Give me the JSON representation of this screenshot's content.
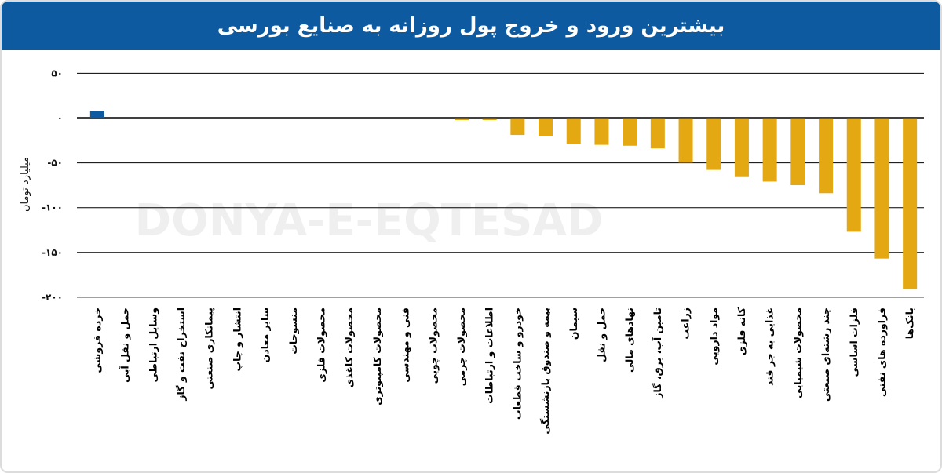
{
  "title": "بیشترین ورود و خروج پول روزانه به صنایع بورسی",
  "watermark": "DONYA-E-EQTESAD",
  "colors": {
    "header": "#0d5aa0",
    "positive": "#0d5aa0",
    "negative": "#e3a812"
  },
  "chart_data": {
    "type": "bar",
    "title": "بیشترین ورود و خروج پول روزانه به صنایع بورسی",
    "ylabel": "میلیارد تومان",
    "xlabel": "",
    "ylim": [
      -200,
      50
    ],
    "yticks": [
      50,
      0,
      -50,
      -100,
      -150,
      -200
    ],
    "ytick_labels": [
      "۵۰",
      "۰",
      "-۵۰",
      "-۱۰۰",
      "-۱۵۰",
      "-۲۰۰"
    ],
    "grid": true,
    "categories": [
      "خرده فروشی",
      "حمل و نقل آبی",
      "وسایل ارتباطی",
      "استخراج نفت و گاز",
      "پیمانکاری صنعتی",
      "انتشار و چاپ",
      "سایر معادن",
      "منسوجات",
      "محصولات فلزی",
      "محصولات کاغذی",
      "محصولات کامپیوتری",
      "فنی و مهندسی",
      "محصولات چوبی",
      "محصولات چرمی",
      "اطلاعات و ارتباطات",
      "خودرو و ساخت قطعات",
      "بیمه و صندوق بازنشستگی",
      "سیمان",
      "حمل و نقل",
      "نهادهای مالی",
      "تامین آب، برق، گاز",
      "زراعت",
      "مواد دارویی",
      "کانه فلزی",
      "غذایی به جز قند",
      "محصولات شیمیایی",
      "چند رشته‌ای صنعتی",
      "فلزات اساسی",
      "فراورده های نفتی",
      "بانک‌ها"
    ],
    "values": [
      8,
      0,
      0,
      0,
      0,
      0,
      0,
      0,
      0,
      0,
      0,
      0,
      0,
      -1,
      -1,
      -18,
      -19,
      -28,
      -29,
      -30,
      -33,
      -49,
      -57,
      -65,
      -70,
      -74,
      -83,
      -126,
      -156,
      -190
    ]
  }
}
